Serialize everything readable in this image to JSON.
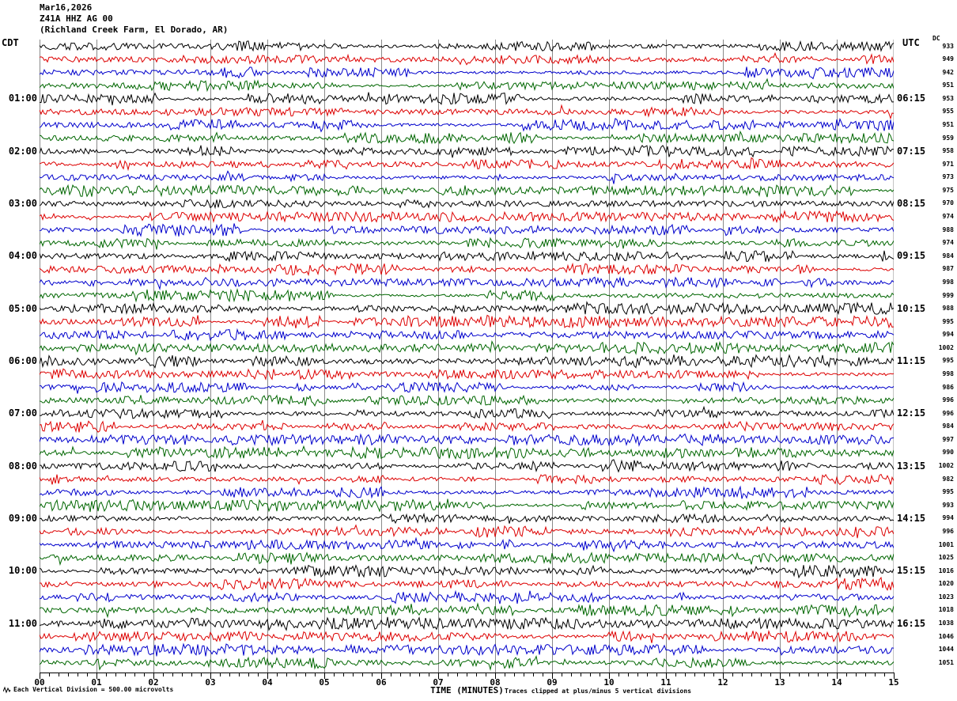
{
  "header": {
    "date": "Mar16,2026",
    "station": "Z41A HHZ AG 00",
    "location": "(Richland Creek Farm, El Dorado, AR)"
  },
  "left_axis": {
    "timezone_label": "CDT"
  },
  "right_axis": {
    "timezone_label": "UTC",
    "dc_label": "DC"
  },
  "x_axis": {
    "title": "TIME (MINUTES)"
  },
  "footer": {
    "scale_note": "Each Vertical Division =  500.00 microvolts",
    "clip_note": "Traces clipped at plus/minus 5 vertical divisions"
  },
  "colors": {
    "trace_black": "#000000",
    "trace_red": "#dd0000",
    "trace_blue": "#0000cc",
    "trace_green": "#006600",
    "grid": "#8a8a8a",
    "axis": "#000000"
  },
  "chart_data": {
    "type": "line",
    "subtype": "helicorder-seismogram",
    "title": "Z41A HHZ AG 00 (Richland Creek Farm, El Dorado, AR) Mar16,2026",
    "xlabel": "TIME (MINUTES)",
    "x_range_minutes": [
      0,
      15
    ],
    "x_ticks": [
      "00",
      "01",
      "02",
      "03",
      "04",
      "05",
      "06",
      "07",
      "08",
      "09",
      "10",
      "11",
      "12",
      "13",
      "14",
      "15"
    ],
    "minor_ticks_per_minute": 5,
    "rows": 48,
    "minutes_per_row": 15,
    "row_color_cycle": [
      "black",
      "red",
      "blue",
      "green"
    ],
    "left_hour_labels": [
      {
        "row": 4,
        "label": "01:00"
      },
      {
        "row": 8,
        "label": "02:00"
      },
      {
        "row": 12,
        "label": "03:00"
      },
      {
        "row": 16,
        "label": "04:00"
      },
      {
        "row": 20,
        "label": "05:00"
      },
      {
        "row": 24,
        "label": "06:00"
      },
      {
        "row": 28,
        "label": "07:00"
      },
      {
        "row": 32,
        "label": "08:00"
      },
      {
        "row": 36,
        "label": "09:00"
      },
      {
        "row": 40,
        "label": "10:00"
      },
      {
        "row": 44,
        "label": "11:00"
      }
    ],
    "right_hour_labels": [
      {
        "row": 4,
        "label": "06:15"
      },
      {
        "row": 8,
        "label": "07:15"
      },
      {
        "row": 12,
        "label": "08:15"
      },
      {
        "row": 16,
        "label": "09:15"
      },
      {
        "row": 20,
        "label": "10:15"
      },
      {
        "row": 24,
        "label": "11:15"
      },
      {
        "row": 28,
        "label": "12:15"
      },
      {
        "row": 32,
        "label": "13:15"
      },
      {
        "row": 36,
        "label": "14:15"
      },
      {
        "row": 40,
        "label": "15:15"
      },
      {
        "row": 44,
        "label": "16:15"
      }
    ],
    "dc_offsets": [
      933,
      949,
      942,
      951,
      953,
      955,
      951,
      959,
      958,
      971,
      973,
      975,
      970,
      974,
      988,
      974,
      984,
      987,
      998,
      999,
      988,
      995,
      994,
      1002,
      995,
      998,
      986,
      996,
      996,
      984,
      997,
      990,
      1002,
      982,
      995,
      993,
      994,
      996,
      1001,
      1025,
      1016,
      1020,
      1023,
      1018,
      1038,
      1046,
      1044,
      1051
    ],
    "amplitude_note": "continuous background seismic noise traces; clipped at plus/minus 5 vertical divisions; each vertical division = 500.00 microvolts"
  }
}
